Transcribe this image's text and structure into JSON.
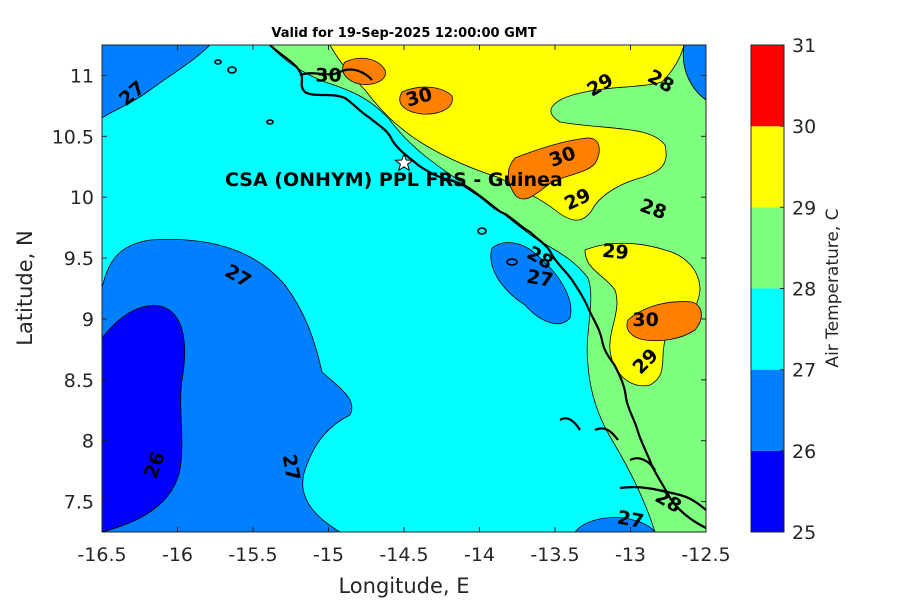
{
  "title": "Valid for 19-Sep-2025 12:00:00 GMT",
  "station_label": "CSA (ONHYM) PPL FRS  - Guinea",
  "chart_data": {
    "type": "contour-map",
    "xlabel": "Longitude, E",
    "ylabel": "Latitude, N",
    "xlim": [
      -16.5,
      -12.5
    ],
    "ylim": [
      7.25,
      11.25
    ],
    "x_ticks": [
      "-16.5",
      "-16",
      "-15.5",
      "-15",
      "-14.5",
      "-14",
      "-13.5",
      "-13",
      "-12.5"
    ],
    "y_ticks": [
      "7.5",
      "8",
      "8.5",
      "9",
      "9.5",
      "10",
      "10.5",
      "11"
    ],
    "colorbar": {
      "label": "Air Temperature, C",
      "ticks": [
        "25",
        "26",
        "27",
        "28",
        "29",
        "30",
        "31"
      ],
      "levels": [
        25,
        26,
        27,
        28,
        29,
        30,
        31
      ],
      "colors": [
        "#0000ff",
        "#007fff",
        "#00ffff",
        "#7fff7f",
        "#ffff00",
        "#ff7f00",
        "#ff0000"
      ]
    },
    "station": {
      "lon": -14.5,
      "lat": 10.28
    },
    "contour_labels": [
      {
        "text": "27",
        "lon": -16.3,
        "lat": 10.85,
        "angle": -40
      },
      {
        "text": "30",
        "lon": -15.0,
        "lat": 11.0,
        "angle": 0
      },
      {
        "text": "30",
        "lon": -14.4,
        "lat": 10.82,
        "angle": -15
      },
      {
        "text": "29",
        "lon": -13.2,
        "lat": 10.92,
        "angle": -30
      },
      {
        "text": "28",
        "lon": -12.8,
        "lat": 10.95,
        "angle": 30
      },
      {
        "text": "30",
        "lon": -13.45,
        "lat": 10.33,
        "angle": -20
      },
      {
        "text": "29",
        "lon": -13.35,
        "lat": 9.98,
        "angle": -25
      },
      {
        "text": "28",
        "lon": -12.85,
        "lat": 9.9,
        "angle": 20
      },
      {
        "text": "29",
        "lon": -13.1,
        "lat": 9.55,
        "angle": 5
      },
      {
        "text": "28",
        "lon": -13.6,
        "lat": 9.5,
        "angle": 30
      },
      {
        "text": "27",
        "lon": -13.6,
        "lat": 9.33,
        "angle": 10
      },
      {
        "text": "27",
        "lon": -15.6,
        "lat": 9.35,
        "angle": 30
      },
      {
        "text": "30",
        "lon": -12.9,
        "lat": 8.99,
        "angle": 0
      },
      {
        "text": "29",
        "lon": -12.9,
        "lat": 8.65,
        "angle": -45
      },
      {
        "text": "26",
        "lon": -16.15,
        "lat": 7.8,
        "angle": -70
      },
      {
        "text": "27",
        "lon": -15.25,
        "lat": 7.78,
        "angle": 80
      },
      {
        "text": "27",
        "lon": -13.0,
        "lat": 7.35,
        "angle": 10
      },
      {
        "text": "28",
        "lon": -12.75,
        "lat": 7.5,
        "angle": 30
      }
    ]
  }
}
